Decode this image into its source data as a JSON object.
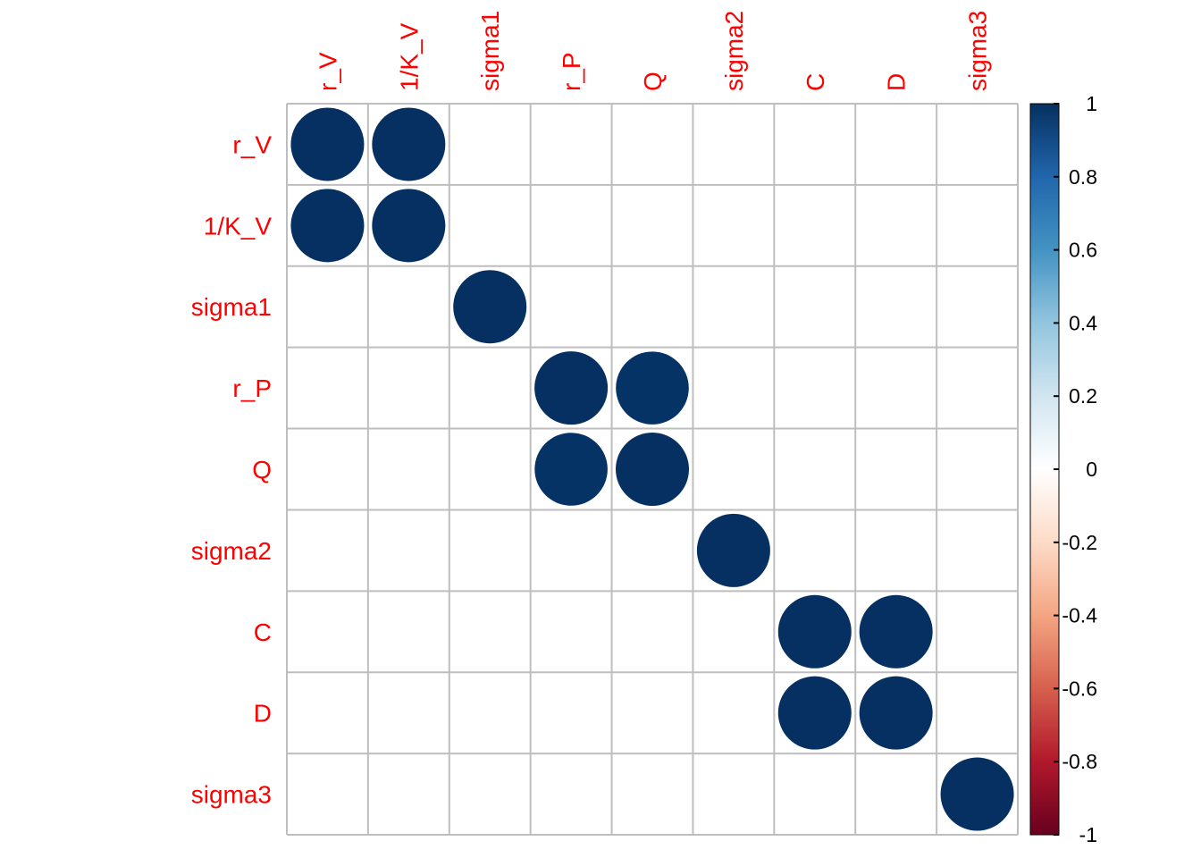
{
  "chart_data": {
    "type": "heatmap",
    "title": "",
    "variables": [
      "r_V",
      "1/K_V",
      "sigma1",
      "r_P",
      "Q",
      "sigma2",
      "C",
      "D",
      "sigma3"
    ],
    "matrix": [
      [
        1.0,
        1.0,
        0,
        0,
        0,
        0,
        0,
        0,
        0
      ],
      [
        1.0,
        1.0,
        0,
        0,
        0,
        0,
        0,
        0,
        0
      ],
      [
        0,
        0,
        1.0,
        0,
        0,
        0,
        0,
        0,
        0
      ],
      [
        0,
        0,
        0,
        1.0,
        0.99,
        0,
        0,
        0,
        0
      ],
      [
        0,
        0,
        0,
        0.99,
        1.0,
        0,
        0,
        0,
        0
      ],
      [
        0,
        0,
        0,
        0,
        0,
        1.0,
        0,
        0,
        0
      ],
      [
        0,
        0,
        0,
        0,
        0,
        0,
        1.0,
        1.0,
        0
      ],
      [
        0,
        0,
        0,
        0,
        0,
        0,
        1.0,
        1.0,
        0
      ],
      [
        0,
        0,
        0,
        0,
        0,
        0,
        0,
        0,
        1.0
      ]
    ],
    "glyph": "circle",
    "grid": true,
    "colorbar": {
      "range": [
        -1,
        1
      ],
      "ticks": [
        "1",
        "0.8",
        "0.6",
        "0.4",
        "0.2",
        "0",
        "-0.2",
        "-0.4",
        "-0.6",
        "-0.8",
        "-1"
      ],
      "tick_values": [
        1,
        0.8,
        0.6,
        0.4,
        0.2,
        0,
        -0.2,
        -0.4,
        -0.6,
        -0.8,
        -1
      ],
      "placement": "right"
    },
    "colors": {
      "label": "#ff0000",
      "grid": "#bebebe",
      "scale": [
        "#67001f",
        "#b2182b",
        "#d6604d",
        "#f4a582",
        "#fddbc7",
        "#ffffff",
        "#d1e5f0",
        "#92c5de",
        "#4393c3",
        "#2166ac",
        "#053061"
      ]
    }
  }
}
